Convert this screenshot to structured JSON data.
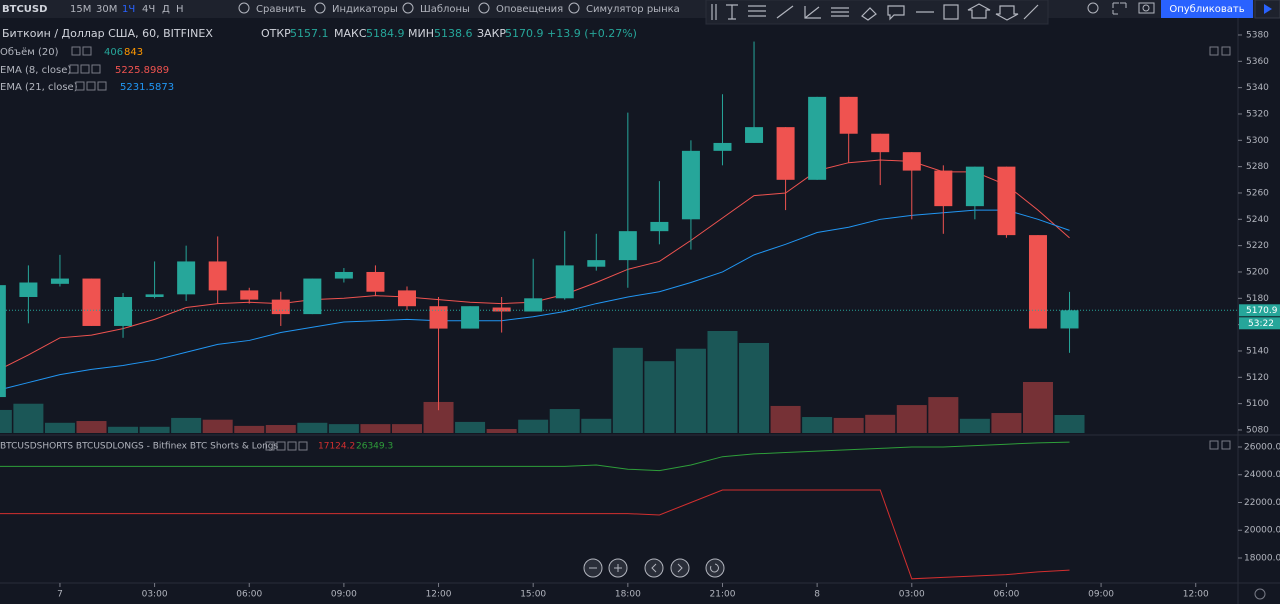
{
  "toolbar": {
    "symbol": "BTCUSD",
    "intervals": [
      "15M",
      "30M",
      "1Ч",
      "4Ч",
      "Д",
      "Н"
    ],
    "buttons": [
      "Сравнить",
      "Индикаторы",
      "Шаблоны",
      "Оповещения",
      "Симулятор рынка"
    ],
    "publish": "Опубликовать"
  },
  "legend": {
    "title": "Биткоин / Доллар США, 60, BITFINEX",
    "open_label": "ОТКР",
    "high_label": "МАКС",
    "low_label": "МИН",
    "close_label": "ЗАКР",
    "change": "+13.9 (+0.27%)",
    "volume_name": "Объём (20)",
    "volume_ma": "843",
    "ema8_name": "EMA (8, close)",
    "ema21_name": "EMA (21, close)",
    "lower_name": "BTCUSDSHORTS BTCUSDLONGS - Bitfinex BTC Shorts & Longs",
    "countdown": "53:22"
  },
  "chart_data": [
    {
      "type": "candlestick",
      "x": [
        -2,
        -1,
        0,
        1,
        2,
        3,
        4,
        5,
        6,
        7,
        8,
        9,
        10,
        11,
        12,
        13,
        14,
        15,
        16,
        17,
        18,
        19,
        20,
        21,
        22,
        23,
        24,
        25,
        26,
        27,
        28,
        29,
        30,
        31,
        32
      ],
      "open": [
        5105,
        5181,
        5191,
        5195,
        5159,
        5181,
        5183,
        5208,
        5186,
        5179,
        5168,
        5195,
        5200,
        5186,
        5174,
        5157,
        5173,
        5170,
        5180,
        5204,
        5209,
        5231,
        5240,
        5292,
        5298,
        5310,
        5270,
        5333,
        5305,
        5291,
        5277,
        5250,
        5280,
        5228,
        5157.1
      ],
      "high": [
        5195,
        5205,
        5213,
        5195,
        5184,
        5208,
        5220,
        5227,
        5188,
        5185,
        5195,
        5203,
        5205,
        5189,
        5181,
        5174,
        5181,
        5210,
        5231,
        5229,
        5321,
        5269,
        5300,
        5335,
        5375,
        5310,
        5333,
        5333,
        5305,
        5291,
        5281,
        5280,
        5280,
        5228,
        5184.9
      ],
      "low": [
        5100,
        5161,
        5189,
        5159,
        5150,
        5180,
        5178,
        5176,
        5176,
        5159,
        5168,
        5192,
        5182,
        5171,
        5095,
        5157,
        5154,
        5170,
        5179,
        5201,
        5188,
        5221,
        5217,
        5281,
        5298,
        5247,
        5270,
        5283,
        5266,
        5240,
        5229,
        5240,
        5226,
        5157,
        5138.6
      ],
      "close": [
        5190,
        5192,
        5195,
        5159,
        5181,
        5183,
        5208,
        5186,
        5179,
        5168,
        5195,
        5200,
        5185,
        5174,
        5157,
        5174,
        5170,
        5180,
        5205,
        5209,
        5231,
        5238,
        5292,
        5298,
        5310,
        5270,
        5333,
        5305,
        5291,
        5277,
        5250,
        5280,
        5228,
        5157,
        5170.9
      ],
      "up_color": "#26a69a",
      "down_color": "#ef5350",
      "volume": [
        520,
        660,
        230,
        270,
        140,
        140,
        340,
        300,
        160,
        180,
        230,
        200,
        200,
        200,
        700,
        250,
        90,
        300,
        540,
        320,
        1920,
        1620,
        1900,
        2300,
        2030,
        610,
        360,
        340,
        410,
        630,
        810,
        320,
        450,
        1150,
        406
      ],
      "series": [
        {
          "name": "EMA (8, close)",
          "color": "#ef5350",
          "values": [
            5125,
            5137,
            5150,
            5152,
            5157,
            5164,
            5173,
            5176,
            5177,
            5176,
            5179,
            5180,
            5182,
            5181,
            5179,
            5177,
            5176,
            5177,
            5183,
            5192,
            5202,
            5208,
            5224,
            5241,
            5258,
            5260,
            5277,
            5283,
            5285,
            5284,
            5276,
            5276,
            5266,
            5247,
            5225.8989
          ]
        },
        {
          "name": "EMA (21, close)",
          "color": "#2196f3",
          "values": [
            5110,
            5116,
            5122,
            5126,
            5129,
            5133,
            5139,
            5145,
            5148,
            5154,
            5158,
            5162,
            5163,
            5164,
            5163,
            5163,
            5163,
            5166,
            5170,
            5176,
            5181,
            5185,
            5192,
            5200,
            5213,
            5221,
            5230,
            5234,
            5240,
            5243,
            5245,
            5247,
            5247,
            5240,
            5231.5873
          ]
        }
      ],
      "xlim": [
        -1.9,
        37.34
      ],
      "ylim": [
        5077.7,
        5385.3
      ],
      "xticks": [
        {
          "value": 0,
          "label": "7"
        },
        {
          "value": 3,
          "label": "03:00"
        },
        {
          "value": 6,
          "label": "06:00"
        },
        {
          "value": 9,
          "label": "09:00"
        },
        {
          "value": 12,
          "label": "12:00"
        },
        {
          "value": 15,
          "label": "15:00"
        },
        {
          "value": 18,
          "label": "18:00"
        },
        {
          "value": 21,
          "label": "21:00"
        },
        {
          "value": 24,
          "label": "8"
        },
        {
          "value": 27,
          "label": "03:00"
        },
        {
          "value": 30,
          "label": "06:00"
        },
        {
          "value": 33,
          "label": "09:00"
        },
        {
          "value": 36,
          "label": "12:00"
        }
      ],
      "yticks": [
        5080,
        5100,
        5120,
        5140,
        5160,
        5180,
        5200,
        5220,
        5240,
        5260,
        5280,
        5300,
        5320,
        5340,
        5360,
        5380
      ]
    },
    {
      "type": "line",
      "x": [
        -2,
        -1,
        0,
        1,
        2,
        3,
        4,
        5,
        6,
        7,
        8,
        9,
        10,
        11,
        12,
        13,
        14,
        15,
        16,
        17,
        18,
        19,
        20,
        21,
        22,
        23,
        24,
        25,
        26,
        27,
        28,
        29,
        30,
        31,
        32
      ],
      "series": [
        {
          "name": "BTCUSDSHORTS",
          "color": "#d32f2f",
          "values": [
            21200,
            21200,
            21200,
            21200,
            21200,
            21200,
            21200,
            21200,
            21200,
            21200,
            21200,
            21200,
            21200,
            21200,
            21200,
            21200,
            21200,
            21200,
            21200,
            21200,
            21200,
            21100,
            22000,
            22900,
            22900,
            22900,
            22900,
            22900,
            22900,
            16500,
            16600,
            16700,
            16800,
            17000,
            17124.2
          ]
        },
        {
          "name": "BTCUSDLONGS",
          "color": "#2e9e3a",
          "values": [
            24600,
            24600,
            24600,
            24600,
            24600,
            24600,
            24600,
            24600,
            24600,
            24600,
            24600,
            24600,
            24600,
            24600,
            24600,
            24600,
            24600,
            24600,
            24600,
            24700,
            24400,
            24300,
            24700,
            25300,
            25500,
            25600,
            25700,
            25800,
            25900,
            26000,
            26000,
            26100,
            26200,
            26300,
            26349.3
          ]
        }
      ],
      "xlim": [
        -1.9,
        37.34
      ],
      "ylim": [
        16270,
        26720
      ],
      "yticks": [
        {
          "value": 18000,
          "label": "18000.0"
        },
        {
          "value": 20000,
          "label": "20000.0"
        },
        {
          "value": 22000,
          "label": "22000.0"
        },
        {
          "value": 24000,
          "label": "24000.0"
        },
        {
          "value": 26000,
          "label": "26000.0"
        }
      ]
    }
  ]
}
